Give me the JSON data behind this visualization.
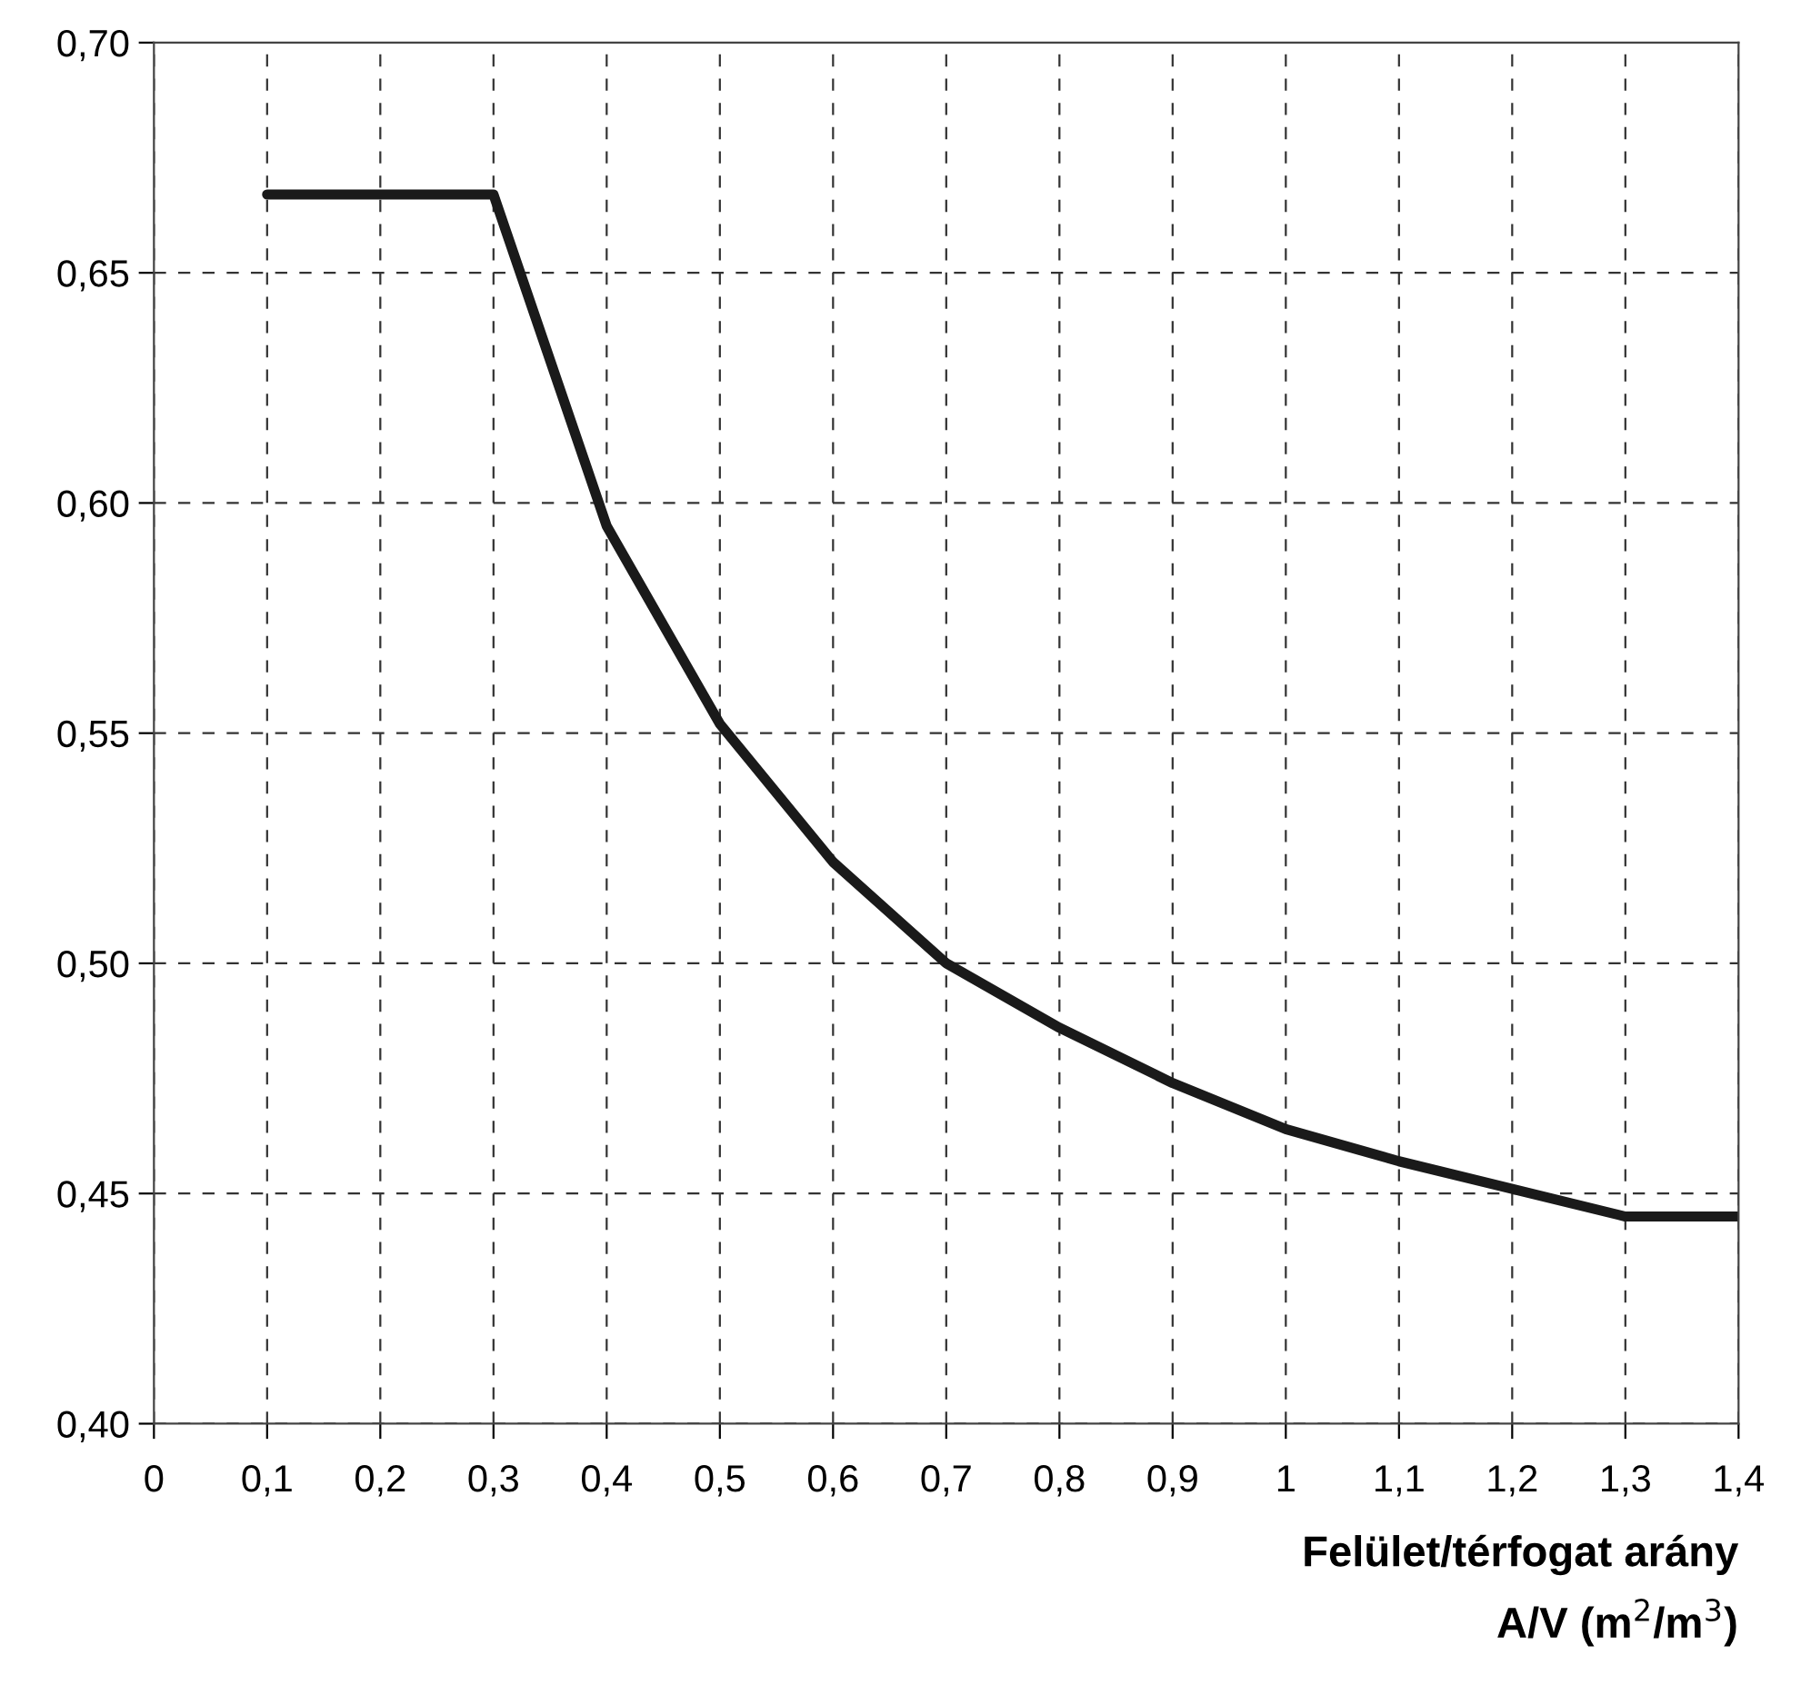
{
  "chart_data": {
    "type": "line",
    "xlabel": "Felület/térfogat arány\nA/V (m$^{2}$/m$^{3}$)",
    "x": [
      0.1,
      0.3,
      0.4,
      0.5,
      0.6,
      0.7,
      0.8,
      0.9,
      1.0,
      1.1,
      1.2,
      1.3,
      1.4
    ],
    "series": [
      {
        "color": "#1a1a1a",
        "values": [
          0.667,
          0.667,
          0.595,
          0.552,
          0.522,
          0.5,
          0.486,
          0.474,
          0.464,
          0.457,
          0.451,
          0.445,
          0.445
        ]
      }
    ],
    "xlim": [
      0,
      1.4
    ],
    "ylim": [
      0.4,
      0.7
    ],
    "xticks": [
      0,
      {
        "value": 0.1,
        "label": "0,1"
      },
      {
        "value": 0.2,
        "label": "0,2"
      },
      {
        "value": 0.3,
        "label": "0,3"
      },
      {
        "value": 0.4,
        "label": "0,4"
      },
      {
        "value": 0.5,
        "label": "0,5"
      },
      {
        "value": 0.6,
        "label": "0,6"
      },
      {
        "value": 0.7,
        "label": "0,7"
      },
      {
        "value": 0.8,
        "label": "0,8"
      },
      {
        "value": 0.9,
        "label": "0,9"
      },
      1,
      {
        "value": 1.1,
        "label": "1,1"
      },
      {
        "value": 1.2,
        "label": "1,2"
      },
      {
        "value": 1.3,
        "label": "1,3"
      },
      {
        "value": 1.4,
        "label": "1,4"
      }
    ],
    "yticks": [
      {
        "value": 0.4,
        "label": "0,40"
      },
      {
        "value": 0.45,
        "label": "0,45"
      },
      {
        "value": 0.5,
        "label": "0,50"
      },
      {
        "value": 0.55,
        "label": "0,55"
      },
      {
        "value": 0.6,
        "label": "0,60"
      },
      {
        "value": 0.65,
        "label": "0,65"
      },
      {
        "value": 0.7,
        "label": "0,70"
      }
    ],
    "grid": true,
    "line_style": "solid",
    "marker": "none"
  }
}
